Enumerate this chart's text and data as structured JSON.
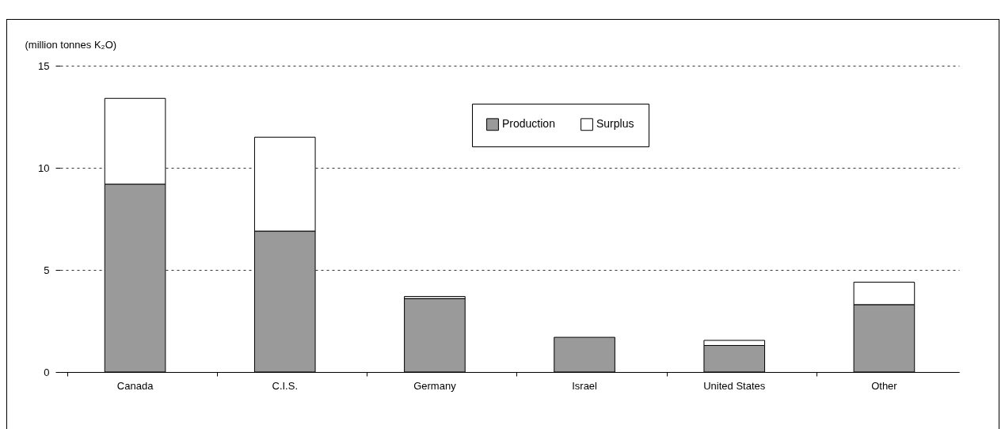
{
  "chart_data": {
    "type": "bar",
    "ylabel": "(million tonnes K₂O)",
    "stacked": true,
    "categories": [
      "Canada",
      "C.I.S.",
      "Germany",
      "Israel",
      "United States",
      "Other"
    ],
    "series": [
      {
        "name": "Production",
        "color": "#9a9a9a",
        "values": [
          9.2,
          6.9,
          3.6,
          1.7,
          1.3,
          3.3
        ]
      },
      {
        "name": "Surplus",
        "color": "#ffffff",
        "values": [
          4.2,
          4.6,
          0.1,
          0,
          0.25,
          1.1
        ]
      }
    ],
    "ylim": [
      0,
      15
    ],
    "yticks": [
      0,
      5,
      10,
      15
    ],
    "grid": "y",
    "legend": "top right"
  }
}
